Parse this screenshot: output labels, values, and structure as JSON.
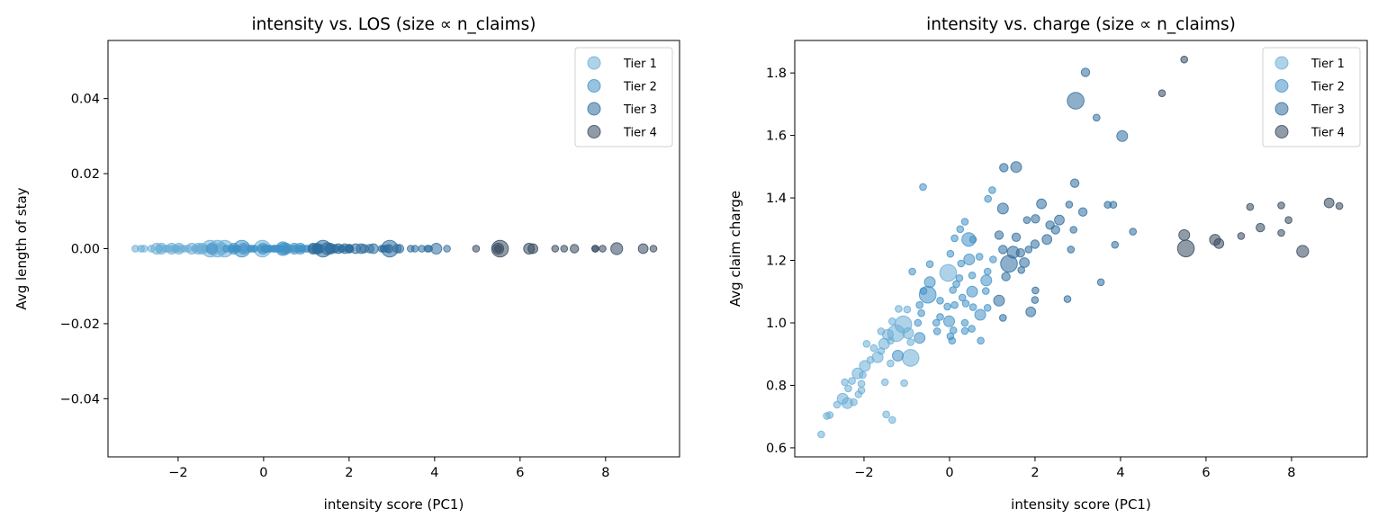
{
  "colors": {
    "Tier 1": "#6baed6",
    "Tier 2": "#4292c6",
    "Tier 3": "#2f6e9e",
    "Tier 4": "#34495e"
  },
  "chart_data": [
    {
      "type": "scatter",
      "title": "intensity vs. LOS (size ∝ n_claims)",
      "xlabel": "intensity score (PC1)",
      "ylabel": "Avg length of stay",
      "xlim": [
        -3.64,
        9.73
      ],
      "ylim": [
        -0.0555,
        0.0555
      ],
      "xticks": [
        -2,
        0,
        2,
        4,
        6,
        8
      ],
      "xtick_labels": [
        "−2",
        "0",
        "2",
        "4",
        "6",
        "8"
      ],
      "yticks": [
        -0.04,
        -0.02,
        0,
        0.02,
        0.04
      ],
      "ytick_labels": [
        "−0.04",
        "−0.02",
        "0.00",
        "0.02",
        "0.04"
      ],
      "legend": "top-right",
      "grid": false,
      "series": [
        {
          "name": "Tier 1",
          "x": [
            -0.91,
            -1.08,
            -1.19,
            -0.99,
            -1.34,
            -1.6,
            -1.44,
            -1.25,
            -0.97,
            -0.91,
            -1.53,
            -1.38,
            -1.94,
            -1.77,
            -1.6,
            -1.68,
            -1.85,
            -1.98,
            -1.38,
            -2.15,
            -2.03,
            -2.28,
            -2.06,
            -2.45,
            -2.37,
            -2.06,
            -2.13,
            -2.5,
            -2.39,
            -2.63,
            -2.24,
            -1.51,
            -1.06,
            -1.48,
            -1.34,
            -2.8,
            -2.87,
            -3.0,
            -0.03
          ],
          "y": [
            0,
            0,
            0,
            0,
            0,
            0,
            0,
            0,
            0,
            0,
            0,
            0,
            0,
            0,
            0,
            0,
            0,
            0,
            0,
            0,
            0,
            0,
            0,
            0,
            0,
            0,
            0,
            0,
            0,
            0,
            0,
            0,
            0,
            0,
            0,
            0,
            0,
            0,
            0
          ],
          "n_claims": [
            120,
            120,
            20,
            20,
            20,
            20,
            50,
            120,
            50,
            20,
            50,
            20,
            20,
            20,
            20,
            50,
            20,
            50,
            20,
            50,
            20,
            20,
            20,
            20,
            20,
            20,
            20,
            50,
            50,
            20,
            20,
            20,
            20,
            20,
            20,
            20,
            20,
            20,
            120
          ]
        },
        {
          "name": "Tier 2",
          "x": [
            -0.62,
            1.0,
            0.9,
            0.36,
            0.25,
            0.45,
            0.12,
            0.55,
            0.02,
            0.46,
            0.7,
            1.02,
            0.27,
            -0.46,
            -0.87,
            0.89,
            0.86,
            0.53,
            0.23,
            -0.46,
            0.16,
            0.08,
            -0.51,
            0.53,
            0.85,
            -0.61,
            0.3,
            -0.22,
            -0.05,
            0.12,
            -0.7,
            0.38,
            0.55,
            0.89,
            0.72,
            -0.66,
            -0.22,
            -0.01,
            -0.31,
            -0.74,
            0.36,
            -0.29,
            0.09,
            0.36,
            0.52,
            -0.7,
            0.02,
            0.06,
            0.73,
            -1.21
          ],
          "y": [
            0,
            0,
            0,
            0,
            0,
            0,
            0,
            0,
            0,
            0,
            0,
            0,
            0,
            0,
            0,
            0,
            0,
            0,
            0,
            0,
            0,
            0,
            0,
            0,
            0,
            0,
            0,
            0,
            0,
            0,
            0,
            0,
            0,
            0,
            0,
            0,
            0,
            0,
            0,
            0,
            0,
            0,
            0,
            0,
            0,
            0,
            0,
            0,
            0,
            0
          ],
          "n_claims": [
            20,
            20,
            20,
            20,
            20,
            80,
            20,
            20,
            20,
            50,
            20,
            20,
            20,
            20,
            20,
            20,
            50,
            20,
            20,
            50,
            20,
            20,
            120,
            50,
            20,
            20,
            20,
            20,
            20,
            20,
            20,
            20,
            20,
            20,
            50,
            20,
            20,
            50,
            20,
            20,
            20,
            20,
            20,
            20,
            20,
            50,
            20,
            20,
            20,
            50
          ]
        },
        {
          "name": "Tier 3",
          "x": [
            3.18,
            2.95,
            3.44,
            4.04,
            1.27,
            1.56,
            2.93,
            1.25,
            2.15,
            2.8,
            3.12,
            3.7,
            3.83,
            4.29,
            3.87,
            3.54,
            2.9,
            2.84,
            2.76,
            2.01,
            2.0,
            1.9,
            1.25,
            1.16,
            1.39,
            1.75,
            1.49,
            1.66,
            2.0,
            2.28,
            2.48,
            2.57,
            2.35,
            2.01,
            1.81,
            1.56,
            1.16,
            1.25,
            1.32,
            1.68,
            1.85
          ],
          "y": [
            0,
            0,
            0,
            0,
            0,
            0,
            0,
            0,
            0,
            0,
            0,
            0,
            0,
            0,
            0,
            0,
            0,
            0,
            0,
            0,
            0,
            0,
            0,
            0,
            0,
            0,
            0,
            0,
            0,
            0,
            0,
            0,
            0,
            0,
            0,
            0,
            0,
            0,
            0,
            0,
            0
          ],
          "n_claims": [
            30,
            120,
            20,
            50,
            30,
            50,
            30,
            50,
            40,
            20,
            30,
            20,
            20,
            20,
            20,
            20,
            20,
            20,
            20,
            20,
            20,
            40,
            20,
            50,
            120,
            40,
            60,
            30,
            30,
            40,
            30,
            40,
            30,
            30,
            20,
            30,
            30,
            30,
            30,
            20,
            20
          ]
        },
        {
          "name": "Tier 4",
          "x": [
            5.49,
            4.97,
            7.03,
            7.76,
            8.88,
            9.12,
            7.93,
            7.27,
            7.76,
            6.82,
            5.49,
            6.21,
            6.3,
            5.53,
            8.26
          ],
          "y": [
            0,
            0,
            0,
            0,
            0,
            0,
            0,
            0,
            0,
            0,
            0,
            0,
            0,
            0,
            0
          ],
          "n_claims": [
            20,
            20,
            20,
            20,
            40,
            20,
            20,
            30,
            20,
            20,
            50,
            50,
            40,
            120,
            60
          ]
        }
      ]
    },
    {
      "type": "scatter",
      "title": "intensity vs. charge (size ∝ n_claims)",
      "xlabel": "intensity score (PC1)",
      "ylabel": "Avg claim charge",
      "xlim": [
        -3.62,
        9.77
      ],
      "ylim": [
        0.571,
        1.904
      ],
      "xticks": [
        -2,
        0,
        2,
        4,
        6,
        8
      ],
      "xtick_labels": [
        "−2",
        "0",
        "2",
        "4",
        "6",
        "8"
      ],
      "yticks": [
        0.6,
        0.8,
        1.0,
        1.2,
        1.4,
        1.6,
        1.8
      ],
      "ytick_labels": [
        "0.6",
        "0.8",
        "1.0",
        "1.2",
        "1.4",
        "1.6",
        "1.8"
      ],
      "legend": "top-right",
      "grid": false,
      "series": [
        {
          "name": "Tier 1",
          "x": [
            -0.91,
            -1.08,
            -1.19,
            -0.99,
            -1.34,
            -1.6,
            -1.44,
            -1.25,
            -0.97,
            -0.91,
            -1.53,
            -1.38,
            -1.94,
            -1.77,
            -1.6,
            -1.68,
            -1.85,
            -1.98,
            -1.38,
            -2.15,
            -2.03,
            -2.28,
            -2.06,
            -2.45,
            -2.37,
            -2.06,
            -2.13,
            -2.5,
            -2.39,
            -2.63,
            -2.24,
            -1.51,
            -1.06,
            -1.48,
            -1.34,
            -2.8,
            -2.87,
            -3.0,
            -0.03
          ],
          "y": [
            0.888,
            0.995,
            1.045,
            1.043,
            1.005,
            0.973,
            0.962,
            0.967,
            0.967,
            0.938,
            0.933,
            0.943,
            0.933,
            0.919,
            0.91,
            0.89,
            0.881,
            0.862,
            0.87,
            0.838,
            0.833,
            0.814,
            0.805,
            0.81,
            0.79,
            0.784,
            0.771,
            0.757,
            0.743,
            0.738,
            0.746,
            0.81,
            0.807,
            0.707,
            0.689,
            0.705,
            0.702,
            0.643,
            1.16
          ],
          "n_claims": [
            120,
            120,
            20,
            20,
            20,
            20,
            50,
            120,
            50,
            20,
            50,
            20,
            20,
            20,
            20,
            50,
            20,
            50,
            20,
            50,
            20,
            20,
            20,
            20,
            20,
            20,
            20,
            50,
            50,
            20,
            20,
            20,
            20,
            20,
            20,
            20,
            20,
            20,
            120
          ]
        },
        {
          "name": "Tier 2",
          "x": [
            -0.62,
            1.0,
            0.9,
            0.36,
            0.25,
            0.45,
            0.12,
            0.55,
            0.02,
            0.46,
            0.7,
            1.02,
            0.27,
            -0.46,
            -0.87,
            0.89,
            0.86,
            0.53,
            0.23,
            -0.46,
            0.16,
            0.08,
            -0.51,
            0.53,
            0.85,
            -0.61,
            0.3,
            -0.22,
            -0.05,
            0.12,
            -0.7,
            0.38,
            0.55,
            0.89,
            0.72,
            -0.66,
            -0.22,
            -0.01,
            -0.31,
            -0.74,
            0.36,
            -0.29,
            0.09,
            0.36,
            0.52,
            -0.7,
            0.02,
            0.06,
            0.73,
            -1.21
          ],
          "y": [
            1.435,
            1.425,
            1.397,
            1.324,
            1.3,
            1.267,
            1.271,
            1.267,
            1.221,
            1.203,
            1.212,
            1.203,
            1.19,
            1.188,
            1.164,
            1.164,
            1.136,
            1.152,
            1.143,
            1.13,
            1.124,
            1.105,
            1.09,
            1.1,
            1.102,
            1.102,
            1.081,
            1.071,
            1.052,
            1.057,
            1.057,
            1.062,
            1.05,
            1.048,
            1.026,
            1.031,
            1.019,
            1.005,
            1.0,
            1.0,
            1.0,
            0.973,
            0.976,
            0.974,
            0.981,
            0.952,
            0.957,
            0.943,
            0.943,
            0.895
          ],
          "n_claims": [
            20,
            20,
            20,
            20,
            20,
            80,
            20,
            20,
            20,
            50,
            20,
            20,
            20,
            20,
            20,
            20,
            50,
            20,
            20,
            50,
            20,
            20,
            120,
            50,
            20,
            20,
            20,
            20,
            20,
            20,
            20,
            20,
            20,
            20,
            50,
            20,
            20,
            50,
            20,
            20,
            20,
            20,
            20,
            20,
            20,
            50,
            20,
            20,
            20,
            50
          ]
        },
        {
          "name": "Tier 3",
          "x": [
            3.18,
            2.95,
            3.44,
            4.04,
            1.27,
            1.56,
            2.93,
            1.25,
            2.15,
            2.8,
            3.12,
            3.7,
            3.83,
            4.29,
            3.87,
            3.54,
            2.9,
            2.84,
            2.76,
            2.01,
            2.0,
            1.9,
            1.25,
            1.16,
            1.39,
            1.75,
            1.49,
            1.66,
            2.0,
            2.28,
            2.48,
            2.57,
            2.35,
            2.01,
            1.81,
            1.56,
            1.16,
            1.25,
            1.32,
            1.68,
            1.85
          ],
          "y": [
            1.802,
            1.711,
            1.657,
            1.598,
            1.497,
            1.499,
            1.447,
            1.366,
            1.381,
            1.379,
            1.355,
            1.378,
            1.378,
            1.292,
            1.25,
            1.13,
            1.298,
            1.235,
            1.076,
            1.104,
            1.073,
            1.035,
            1.016,
            1.071,
            1.189,
            1.193,
            1.226,
            1.224,
            1.252,
            1.267,
            1.298,
            1.329,
            1.313,
            1.333,
            1.329,
            1.274,
            1.281,
            1.235,
            1.148,
            1.169,
            1.235
          ],
          "n_claims": [
            30,
            120,
            20,
            50,
            30,
            50,
            30,
            50,
            40,
            20,
            30,
            20,
            20,
            20,
            20,
            20,
            20,
            20,
            20,
            20,
            20,
            40,
            20,
            50,
            120,
            40,
            60,
            30,
            30,
            40,
            30,
            40,
            30,
            30,
            20,
            30,
            30,
            30,
            30,
            20,
            20
          ]
        },
        {
          "name": "Tier 4",
          "x": [
            5.49,
            4.97,
            7.03,
            7.76,
            8.88,
            9.12,
            7.93,
            7.27,
            7.76,
            6.82,
            5.49,
            6.21,
            6.3,
            5.53,
            8.26
          ],
          "y": [
            1.843,
            1.735,
            1.371,
            1.376,
            1.384,
            1.374,
            1.329,
            1.305,
            1.288,
            1.278,
            1.281,
            1.266,
            1.254,
            1.238,
            1.229
          ],
          "n_claims": [
            20,
            20,
            20,
            20,
            40,
            20,
            20,
            30,
            20,
            20,
            50,
            50,
            40,
            120,
            60
          ]
        }
      ]
    }
  ]
}
